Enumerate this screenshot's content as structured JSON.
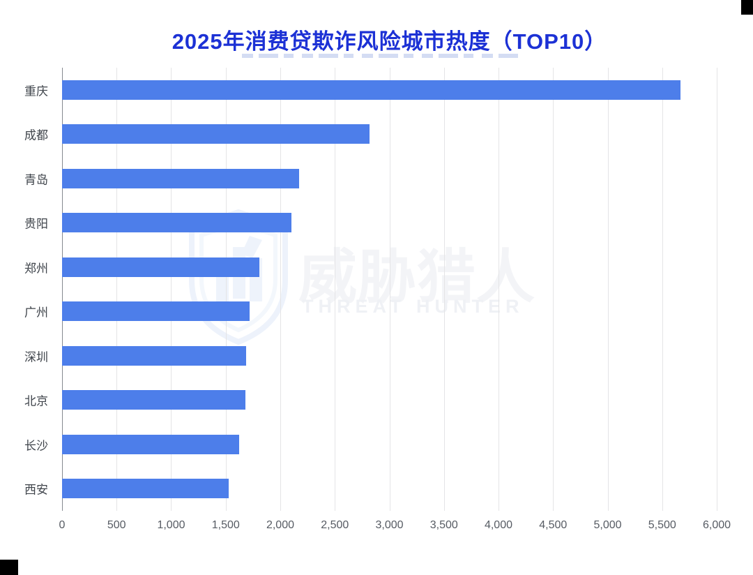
{
  "page": {
    "title": "2025年消费贷欺诈风险城市热度（TOP10）"
  },
  "watermark": {
    "logo_icon": "threat-hunter-shield-logo",
    "text_cn": "威胁猎人",
    "text_en": "THREAT HUNTER"
  },
  "chart_data": {
    "type": "bar",
    "orientation": "horizontal",
    "title": "2025年消费贷欺诈风险城市热度（TOP10）",
    "categories": [
      "重庆",
      "成都",
      "青岛",
      "贵阳",
      "郑州",
      "广州",
      "深圳",
      "北京",
      "长沙",
      "西安"
    ],
    "values": [
      5670,
      2820,
      2170,
      2100,
      1810,
      1720,
      1690,
      1680,
      1620,
      1530
    ],
    "xlabel": "",
    "ylabel": "",
    "xlim": [
      0,
      6000
    ],
    "x_ticks": [
      0,
      500,
      1000,
      1500,
      2000,
      2500,
      3000,
      3500,
      4000,
      4500,
      5000,
      5500,
      6000
    ],
    "x_tick_labels": [
      "0",
      "500",
      "1,000",
      "1,500",
      "2,000",
      "2,500",
      "3,000",
      "3,500",
      "4,000",
      "4,500",
      "5,000",
      "5,500",
      "6,000"
    ],
    "grid": true,
    "legend": false,
    "bar_color": "#4d7eea"
  },
  "colors": {
    "title": "#1c31d5",
    "bar": "#4d7eea",
    "gridline": "#e4e4e6",
    "axis_line": "#85898f",
    "category_label": "#3f444b",
    "tick_label": "#565b63",
    "watermark_text": "#f3f4f7",
    "corner_block": "#000000"
  }
}
